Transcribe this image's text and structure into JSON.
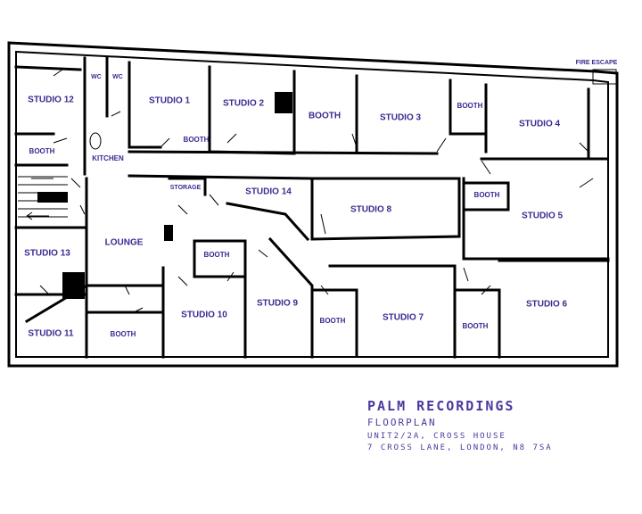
{
  "rooms": [
    "STUDIO 12",
    "WC",
    "WC",
    "STUDIO 1",
    "STUDIO 2",
    "BOOTH",
    "BOOTH",
    "STUDIO 3",
    "BOOTH",
    "STUDIO 4",
    "FIRE ESCAPE",
    "BOOTH",
    "KITCHEN",
    "STORAGE",
    "STUDIO 14",
    "STUDIO 8",
    "BOOTH",
    "STUDIO 5",
    "LOUNGE",
    "STUDIO 13",
    "BOOTH",
    "STUDIO 10",
    "STUDIO 9",
    "BOOTH",
    "STUDIO 7",
    "BOOTH",
    "STUDIO 6",
    "STUDIO 11",
    "BOOTH"
  ],
  "title": "PALM RECORDINGS",
  "subtitle": "FLOORPLAN",
  "address_lines": [
    "UNIT2/2A, CROSS HOUSE",
    "7 CROSS LANE, LONDON, N8 7SA"
  ]
}
